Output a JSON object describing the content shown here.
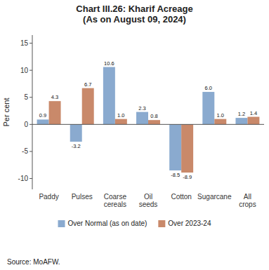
{
  "chart_data": {
    "type": "bar",
    "title": "Chart III.26: Kharif Acreage\n(As on August 09, 2024)",
    "ylabel": "Per cent",
    "categories": [
      "Paddy",
      "Pulses",
      "Coarse\ncereals",
      "Oil\nseeds",
      "Cotton",
      "Sugarcane",
      "All\ncrops"
    ],
    "series": [
      {
        "name": "Over Normal (as on date)",
        "color": "#8aaacf",
        "values": [
          0.9,
          -3.2,
          10.6,
          2.3,
          -8.5,
          6.0,
          1.2
        ],
        "value_labels": [
          "0.9",
          "-3.2",
          "10.6",
          "2.3",
          "-8.5",
          "6.0",
          "1.2"
        ]
      },
      {
        "name": "Over 2023-24",
        "color": "#c9896a",
        "values": [
          4.3,
          6.7,
          1.0,
          0.8,
          -8.9,
          1.0,
          1.4
        ],
        "value_labels": [
          "4.3",
          "6.7",
          "1.0",
          "0.8",
          "-8.9",
          "1.0",
          "1.4"
        ]
      }
    ],
    "ylim": [
      -12,
      16.5
    ],
    "yticks": [
      -10,
      -5,
      0,
      5,
      10,
      15
    ],
    "data_labels": true,
    "legend": "bottom",
    "grid": false,
    "source": "Source: MoAFW."
  }
}
